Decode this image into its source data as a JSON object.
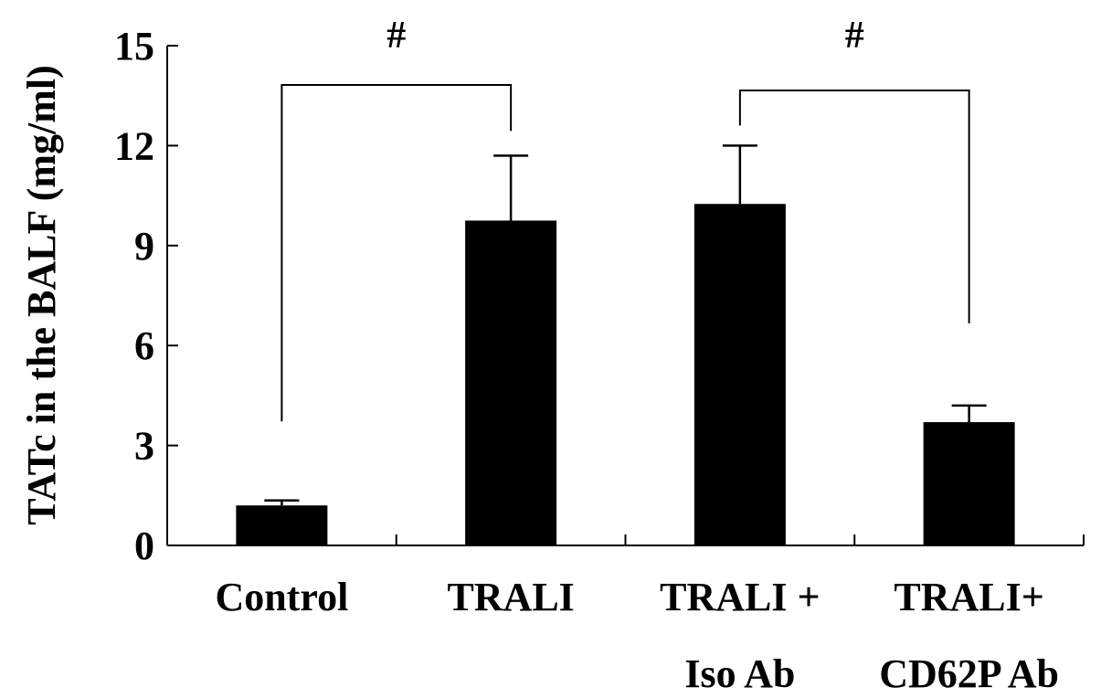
{
  "chart_data": {
    "type": "bar",
    "title": "",
    "xlabel": "",
    "ylabel": "TATc in the BALF (mg/ml)",
    "ylim": [
      0,
      15
    ],
    "yticks": [
      0,
      3,
      6,
      9,
      12,
      15
    ],
    "categories": [
      {
        "line1": "Control",
        "line2": ""
      },
      {
        "line1": "TRALI",
        "line2": ""
      },
      {
        "line1": "TRALI +",
        "line2": "Iso Ab"
      },
      {
        "line1": "TRALI+",
        "line2": "CD62P Ab"
      }
    ],
    "values": [
      1.2,
      9.75,
      10.25,
      3.7
    ],
    "error": [
      0.15,
      1.95,
      1.75,
      0.5
    ],
    "bar_color": "#000000",
    "grid": false,
    "significance": [
      {
        "from": 0,
        "to": 1,
        "label": "#"
      },
      {
        "from": 2,
        "to": 3,
        "label": "#"
      }
    ]
  }
}
